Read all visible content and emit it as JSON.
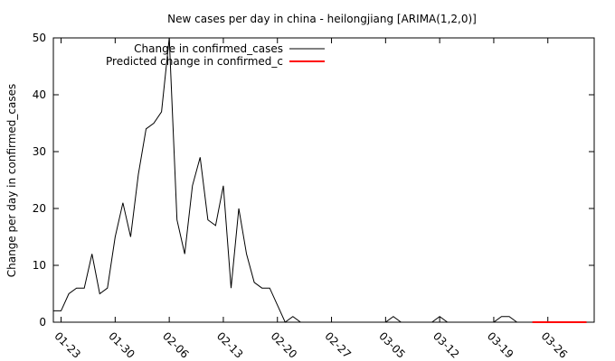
{
  "chart_data": {
    "type": "line",
    "title": "New cases per day in china - heilongjiang [ARIMA(1,2,0)]",
    "xlabel": "",
    "ylabel": "Change per day in confirmed_cases",
    "ylim": [
      0,
      50
    ],
    "yticks": [
      0,
      10,
      20,
      30,
      40,
      50
    ],
    "x_start_date": "01-22",
    "xticks": [
      "01-23",
      "01-30",
      "02-06",
      "02-13",
      "02-20",
      "02-27",
      "03-05",
      "03-12",
      "03-19",
      "03-26"
    ],
    "grid": false,
    "legend_position": "top-left",
    "series": [
      {
        "name": "Change in confirmed_cases",
        "color": "#000000",
        "start": "01-22",
        "values": [
          2,
          2,
          5,
          6,
          6,
          12,
          5,
          6,
          15,
          21,
          15,
          26,
          34,
          35,
          37,
          50,
          18,
          12,
          24,
          29,
          18,
          17,
          24,
          6,
          20,
          12,
          7,
          6,
          6,
          3,
          0,
          1,
          0,
          0,
          0,
          0,
          0,
          0,
          0,
          0,
          0,
          0,
          0,
          0,
          1,
          0,
          0,
          0,
          0,
          0,
          1,
          0,
          0,
          0,
          0,
          0,
          0,
          0,
          1,
          1,
          0
        ]
      },
      {
        "name": "Predicted change in confirmed_c",
        "color": "#ff0000",
        "start": "03-24",
        "values": [
          0,
          0,
          0,
          0,
          0,
          0,
          0,
          0
        ]
      }
    ]
  }
}
